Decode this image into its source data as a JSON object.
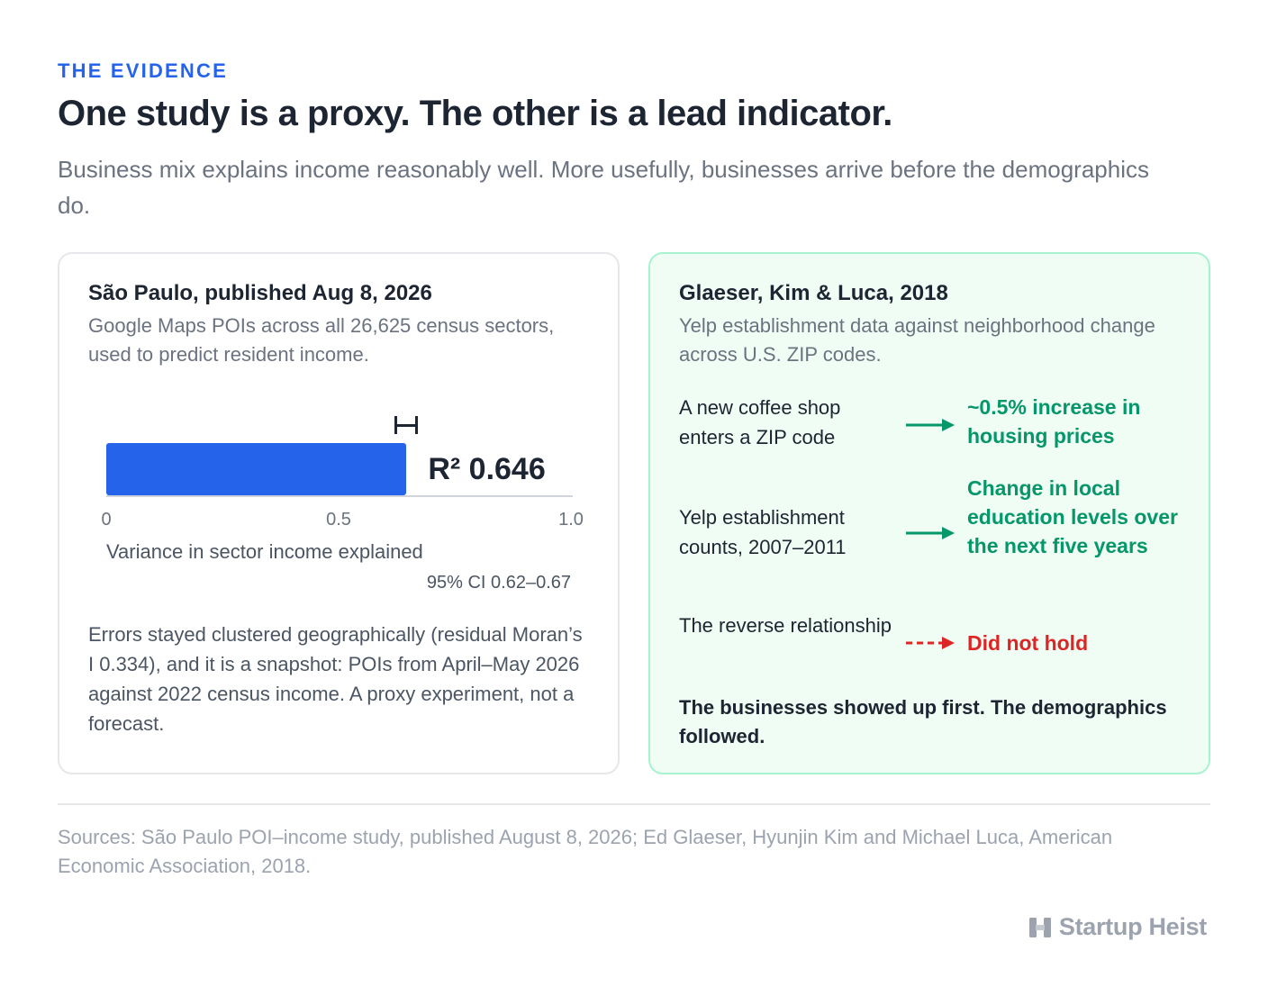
{
  "header": {
    "eyebrow": "THE EVIDENCE",
    "title": "One study is a proxy. The other is a lead indicator.",
    "subtitle": "Business mix explains income reasonably well. More usefully, businesses arrive before the demographics do."
  },
  "left_card": {
    "title": "São Paulo, published Aug 8, 2026",
    "subtitle": "Google Maps POIs across all 26,625 census sectors, used to predict resident income.",
    "r2_label": "R²",
    "r2_value": "0.646",
    "axis_label": "Variance in sector income explained",
    "ci_text": "95% CI 0.62–0.67",
    "note": "Errors stayed clustered geographically (residual Moran’s I 0.334), and it is a snapshot: POIs from April–May 2026 against 2022 census income. A proxy experiment, not a forecast."
  },
  "chart_data": {
    "type": "bar",
    "categories": [
      ""
    ],
    "values": [
      0.646
    ],
    "ci": [
      0.62,
      0.67
    ],
    "xlim": [
      0,
      1.0
    ],
    "ticks": [
      "0",
      "0.5",
      "1.0"
    ],
    "tick_values": [
      0,
      0.5,
      1.0
    ],
    "xlabel": "Variance in sector income explained",
    "ylabel": "",
    "title": ""
  },
  "right_card": {
    "title": "Glaeser, Kim & Luca, 2018",
    "subtitle": "Yelp establishment data against neighborhood change across U.S. ZIP codes.",
    "rows": [
      {
        "label": "A new coffee shop enters a ZIP code",
        "result": "~0.5% increase in housing prices",
        "arrow": "solid"
      },
      {
        "label": "Yelp establishment counts, 2007–2011",
        "result": "Change in local education levels over the next five years",
        "arrow": "solid"
      },
      {
        "label": "The reverse relationship",
        "result": "Did not hold",
        "arrow": "dashed"
      }
    ],
    "conclusion": "The businesses showed up first. The demographics followed."
  },
  "footer": {
    "sources": "Sources: São Paulo POI–income study, published August 8, 2026; Ed Glaeser, Hyunjin Kim and Michael Luca, American Economic Association, 2018.",
    "brand": "Startup Heist"
  },
  "colors": {
    "accent": "#2563eb",
    "positive": "#059669",
    "negative": "#dc2626"
  }
}
